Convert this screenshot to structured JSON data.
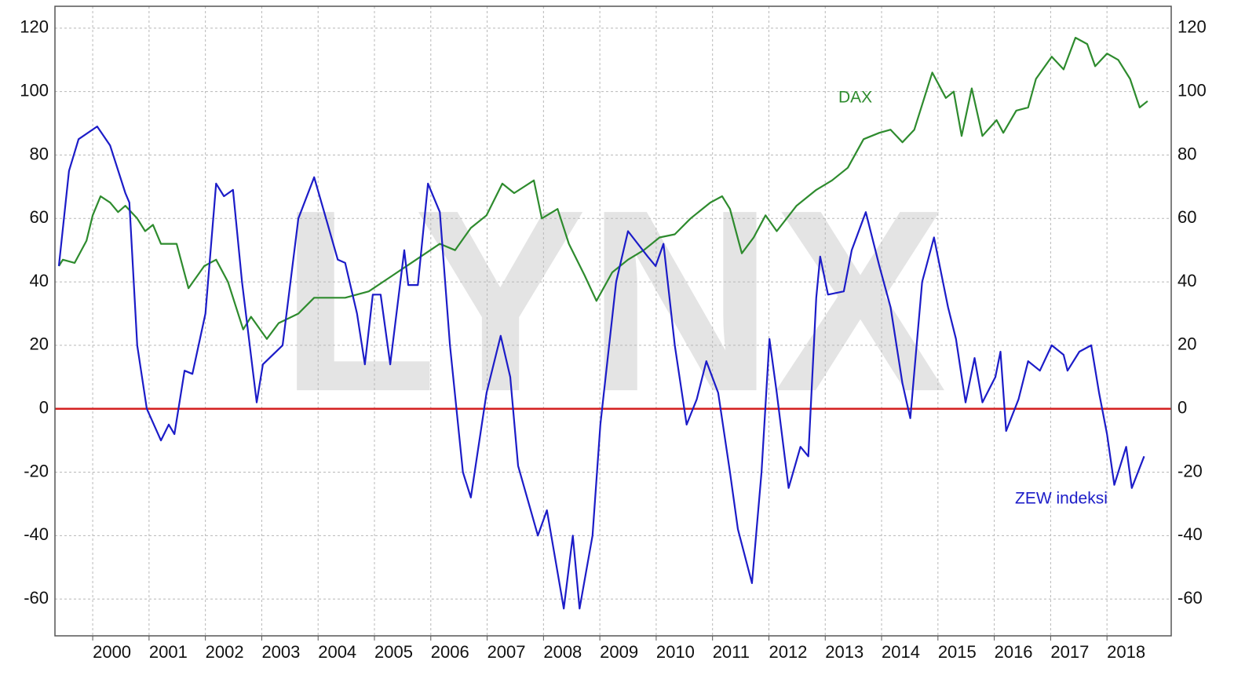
{
  "chart_data": {
    "type": "line",
    "watermark": "LYNX",
    "xlim": [
      1999.33,
      2019.14
    ],
    "ylim": [
      -71.6,
      126.9
    ],
    "xticks": [
      2000,
      2001,
      2002,
      2003,
      2004,
      2005,
      2006,
      2007,
      2008,
      2009,
      2010,
      2011,
      2012,
      2013,
      2014,
      2015,
      2016,
      2017,
      2018
    ],
    "yticks": [
      -60,
      -40,
      -20,
      0,
      20,
      40,
      60,
      80,
      100,
      120
    ],
    "grid": true,
    "reference_line": {
      "value": 0,
      "color": "#d42020"
    },
    "series": [
      {
        "name": "DAX",
        "color": "#2e8b2e",
        "x": [
          1999.4,
          1999.47,
          1999.68,
          1999.89,
          2000.0,
          2000.14,
          2000.31,
          2000.45,
          2000.58,
          2000.79,
          2000.93,
          2001.07,
          2001.21,
          2001.49,
          2001.7,
          2001.98,
          2002.19,
          2002.4,
          2002.67,
          2002.81,
          2003.09,
          2003.3,
          2003.65,
          2003.93,
          2004.48,
          2004.9,
          2005.32,
          2005.74,
          2006.16,
          2006.43,
          2006.71,
          2006.99,
          2007.27,
          2007.48,
          2007.83,
          2007.97,
          2008.25,
          2008.45,
          2008.73,
          2008.94,
          2009.22,
          2009.5,
          2009.78,
          2010.06,
          2010.33,
          2010.61,
          2010.96,
          2011.17,
          2011.31,
          2011.52,
          2011.73,
          2011.94,
          2012.14,
          2012.49,
          2012.84,
          2013.12,
          2013.4,
          2013.68,
          2013.96,
          2014.16,
          2014.37,
          2014.58,
          2014.9,
          2015.14,
          2015.28,
          2015.42,
          2015.6,
          2015.79,
          2016.04,
          2016.16,
          2016.39,
          2016.6,
          2016.74,
          2017.02,
          2017.23,
          2017.44,
          2017.65,
          2017.79,
          2018.0,
          2018.2,
          2018.41,
          2018.58,
          2018.72
        ],
        "values": [
          45,
          47,
          46,
          53,
          61,
          67,
          65,
          62,
          64,
          60,
          56,
          58,
          52,
          52,
          38,
          45,
          47,
          40,
          25,
          29,
          22,
          27,
          30,
          35,
          35,
          37,
          42,
          47,
          52,
          50,
          57,
          61,
          71,
          68,
          72,
          60,
          63,
          52,
          42,
          34,
          43,
          47,
          50,
          54,
          55,
          60,
          65,
          67,
          63,
          49,
          54,
          61,
          56,
          64,
          69,
          72,
          76,
          85,
          87,
          88,
          84,
          88,
          106,
          98,
          100,
          86,
          101,
          86,
          91,
          87,
          94,
          95,
          104,
          111,
          107,
          117,
          115,
          108,
          112,
          110,
          104,
          95,
          97
        ]
      },
      {
        "name": "ZEW indeksi",
        "color": "#1c1cc8",
        "x": [
          1999.4,
          1999.58,
          1999.75,
          2000.08,
          2000.31,
          2000.58,
          2000.65,
          2000.79,
          2000.96,
          2001.21,
          2001.35,
          2001.45,
          2001.63,
          2001.77,
          2002.0,
          2002.19,
          2002.33,
          2002.49,
          2002.65,
          2002.91,
          2003.02,
          2003.37,
          2003.65,
          2003.93,
          2004.14,
          2004.35,
          2004.48,
          2004.69,
          2004.83,
          2004.97,
          2005.11,
          2005.28,
          2005.53,
          2005.6,
          2005.77,
          2005.95,
          2006.16,
          2006.34,
          2006.57,
          2006.71,
          2006.99,
          2007.24,
          2007.41,
          2007.55,
          2007.9,
          2008.06,
          2008.36,
          2008.52,
          2008.64,
          2008.87,
          2009.01,
          2009.29,
          2009.5,
          2009.85,
          2009.99,
          2010.13,
          2010.33,
          2010.54,
          2010.72,
          2010.89,
          2011.1,
          2011.31,
          2011.45,
          2011.7,
          2011.87,
          2012.01,
          2012.14,
          2012.35,
          2012.56,
          2012.7,
          2012.84,
          2012.91,
          2013.05,
          2013.33,
          2013.47,
          2013.72,
          2013.96,
          2014.16,
          2014.37,
          2014.51,
          2014.72,
          2014.93,
          2015.18,
          2015.32,
          2015.49,
          2015.65,
          2015.79,
          2016.02,
          2016.11,
          2016.21,
          2016.43,
          2016.6,
          2016.81,
          2017.02,
          2017.23,
          2017.3,
          2017.51,
          2017.72,
          2017.86,
          2018.0,
          2018.13,
          2018.34,
          2018.44,
          2018.66
        ],
        "values": [
          45,
          75,
          85,
          89,
          83,
          68,
          65,
          20,
          0,
          -10,
          -5,
          -8,
          12,
          11,
          30,
          71,
          67,
          69,
          40,
          2,
          14,
          20,
          60,
          73,
          60,
          47,
          46,
          30,
          14,
          36,
          36,
          14,
          50,
          39,
          39,
          71,
          62,
          20,
          -20,
          -28,
          5,
          23,
          10,
          -18,
          -40,
          -32,
          -63,
          -40,
          -63,
          -40,
          -5,
          40,
          56,
          48,
          45,
          52,
          20,
          -5,
          3,
          15,
          5,
          -20,
          -38,
          -55,
          -20,
          22,
          5,
          -25,
          -12,
          -15,
          35,
          48,
          36,
          37,
          50,
          62,
          45,
          32,
          8,
          -3,
          40,
          54,
          32,
          22,
          2,
          16,
          2,
          10,
          18,
          -7,
          3,
          15,
          12,
          20,
          17,
          12,
          18,
          20,
          5,
          -8,
          -24,
          -12,
          -25,
          -15
        ]
      }
    ]
  }
}
